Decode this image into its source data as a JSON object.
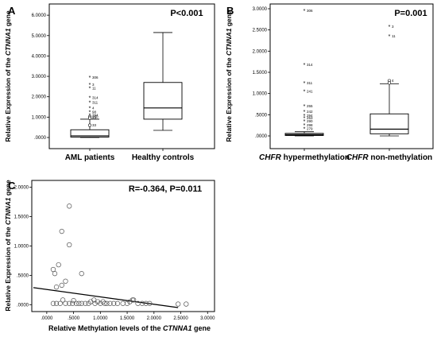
{
  "chart_data": [
    {
      "panel": "A",
      "type": "box",
      "stat_text": "P<0.001",
      "ylabel": [
        "Relative Expression of the ",
        "CTNNA1",
        " gene"
      ],
      "ylim": [
        0,
        6.2
      ],
      "yticks": [
        0,
        1,
        2,
        3,
        4,
        5,
        6
      ],
      "ytick_labels": [
        ".0000",
        "1.0000",
        "2.0000",
        "3.0000",
        "4.0000",
        "5.0000",
        "6.0000"
      ],
      "categories": [
        "AML patients",
        "Healthy controls"
      ],
      "boxes": [
        {
          "whisker_low": 0.0,
          "q1": 0.02,
          "median": 0.08,
          "q3": 0.38,
          "whisker_high": 0.9,
          "outliers": [
            {
              "value": 2.95,
              "label": "306",
              "mark": "*"
            },
            {
              "value": 2.6,
              "label": "3",
              "mark": "*"
            },
            {
              "value": 2.42,
              "label": "11",
              "mark": "*"
            },
            {
              "value": 1.95,
              "label": "314",
              "mark": "*"
            },
            {
              "value": 1.72,
              "label": "311",
              "mark": "*"
            },
            {
              "value": 1.45,
              "label": "4",
              "mark": "*"
            },
            {
              "value": 1.25,
              "label": "98",
              "mark": "*"
            },
            {
              "value": 1.1,
              "label": "294",
              "mark": "*"
            },
            {
              "value": 1.02,
              "label": "250",
              "mark": "o"
            },
            {
              "value": 0.95,
              "label": "23",
              "mark": "o"
            },
            {
              "value": 0.6,
              "label": "33",
              "mark": "o"
            }
          ]
        },
        {
          "whisker_low": 0.35,
          "q1": 0.9,
          "median": 1.45,
          "q3": 2.7,
          "whisker_high": 5.15,
          "outliers": []
        }
      ]
    },
    {
      "panel": "B",
      "type": "box",
      "stat_text": "P=0.001",
      "ylabel": [
        "Relative Expression of the ",
        "CTNNA1",
        " gene"
      ],
      "ylim": [
        0,
        3.0
      ],
      "yticks": [
        0,
        0.5,
        1.0,
        1.5,
        2.0,
        2.5,
        3.0
      ],
      "ytick_labels": [
        ".0000",
        ".5000",
        "1.0000",
        "1.5000",
        "2.0000",
        "2.5000",
        "3.0000"
      ],
      "categories": [
        [
          "CHFR",
          " hypermethylation"
        ],
        [
          "CHFR",
          " non-methylation"
        ]
      ],
      "boxes": [
        {
          "whisker_low": 0.0,
          "q1": 0.01,
          "median": 0.03,
          "q3": 0.06,
          "whisker_high": 0.1,
          "outliers": [
            {
              "value": 2.95,
              "label": "306",
              "mark": "*"
            },
            {
              "value": 1.68,
              "label": "314",
              "mark": "*"
            },
            {
              "value": 1.25,
              "label": "311",
              "mark": "*"
            },
            {
              "value": 1.05,
              "label": "241",
              "mark": "*"
            },
            {
              "value": 0.7,
              "label": "255",
              "mark": "*"
            },
            {
              "value": 0.57,
              "label": "242",
              "mark": "*"
            },
            {
              "value": 0.48,
              "label": "294",
              "mark": "*"
            },
            {
              "value": 0.42,
              "label": "253",
              "mark": "*"
            },
            {
              "value": 0.35,
              "label": "290",
              "mark": "*"
            },
            {
              "value": 0.25,
              "label": "298",
              "mark": "*"
            },
            {
              "value": 0.17,
              "label": "279",
              "mark": "*"
            }
          ]
        },
        {
          "whisker_low": 0.0,
          "q1": 0.05,
          "median": 0.16,
          "q3": 0.52,
          "whisker_high": 1.23,
          "outliers": [
            {
              "value": 2.58,
              "label": "3",
              "mark": "*"
            },
            {
              "value": 2.35,
              "label": "11",
              "mark": "*"
            },
            {
              "value": 1.3,
              "label": "4",
              "mark": "o"
            },
            {
              "value": 1.25,
              "label": "",
              "mark": "o"
            }
          ]
        }
      ]
    },
    {
      "panel": "C",
      "type": "scatter",
      "stat_text": "R=-0.364,  P=0.011",
      "xlabel": [
        "Relative Methylation levels of the ",
        "CTNNA1",
        " gene"
      ],
      "ylabel": [
        "Relative Expression of the ",
        "CTNNA1",
        " gene"
      ],
      "xlim": [
        -0.25,
        3.1
      ],
      "ylim": [
        -0.05,
        2.05
      ],
      "xticks": [
        0,
        0.5,
        1.0,
        1.5,
        2.0,
        2.5,
        3.0
      ],
      "xtick_labels": [
        ".0000",
        ".5000",
        "1.0000",
        "1.5000",
        "2.0000",
        "2.5000",
        "3.0000"
      ],
      "yticks": [
        0,
        0.5,
        1.0,
        1.5,
        2.0
      ],
      "ytick_labels": [
        ".0000",
        ".5000",
        "1.0000",
        "1.5000",
        "2.0000"
      ],
      "fit_line": {
        "x": [
          -0.25,
          2.45
        ],
        "y": [
          0.29,
          -0.05
        ]
      },
      "points": [
        [
          0.42,
          1.68
        ],
        [
          0.28,
          1.25
        ],
        [
          0.42,
          1.02
        ],
        [
          0.22,
          0.68
        ],
        [
          0.65,
          0.53
        ],
        [
          0.12,
          0.6
        ],
        [
          0.15,
          0.53
        ],
        [
          0.35,
          0.4
        ],
        [
          0.28,
          0.33
        ],
        [
          0.18,
          0.3
        ],
        [
          0.3,
          0.08
        ],
        [
          0.5,
          0.07
        ],
        [
          0.12,
          0.02
        ],
        [
          0.18,
          0.02
        ],
        [
          0.25,
          0.02
        ],
        [
          0.35,
          0.02
        ],
        [
          0.42,
          0.02
        ],
        [
          0.48,
          0.02
        ],
        [
          0.55,
          0.02
        ],
        [
          0.6,
          0.02
        ],
        [
          0.65,
          0.02
        ],
        [
          0.72,
          0.02
        ],
        [
          0.78,
          0.02
        ],
        [
          0.82,
          0.05
        ],
        [
          0.88,
          0.08
        ],
        [
          0.9,
          0.02
        ],
        [
          0.95,
          0.05
        ],
        [
          1.0,
          0.02
        ],
        [
          1.05,
          0.05
        ],
        [
          1.08,
          0.02
        ],
        [
          1.12,
          0.02
        ],
        [
          1.18,
          0.02
        ],
        [
          1.25,
          0.02
        ],
        [
          1.32,
          0.02
        ],
        [
          1.42,
          0.02
        ],
        [
          1.5,
          0.02
        ],
        [
          1.55,
          0.05
        ],
        [
          1.62,
          0.08
        ],
        [
          1.7,
          0.02
        ],
        [
          1.78,
          0.02
        ],
        [
          1.85,
          0.02
        ],
        [
          1.92,
          0.02
        ],
        [
          1.6,
          0.08
        ],
        [
          2.45,
          0.01
        ],
        [
          2.6,
          0.01
        ]
      ]
    }
  ]
}
